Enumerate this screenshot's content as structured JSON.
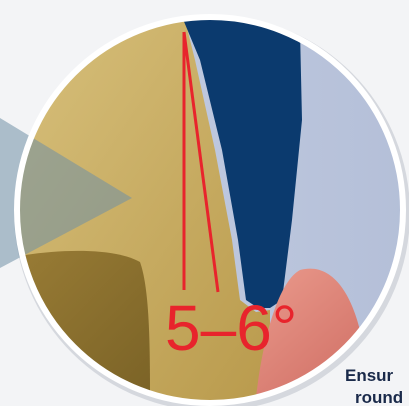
{
  "angle_label": "5–6°",
  "caption": {
    "line1": "Ensur",
    "line2": "round"
  },
  "colors": {
    "background": "#f3f4f6",
    "gold_light": "#d9c07a",
    "gold_mid": "#c8aa5a",
    "gold_dark": "#8f7532",
    "navy": "#0b3a6e",
    "pale_blue": "#bcc6dc",
    "pink": "#e3837a",
    "red_line": "#e8242c",
    "ring": "#ffffff"
  }
}
